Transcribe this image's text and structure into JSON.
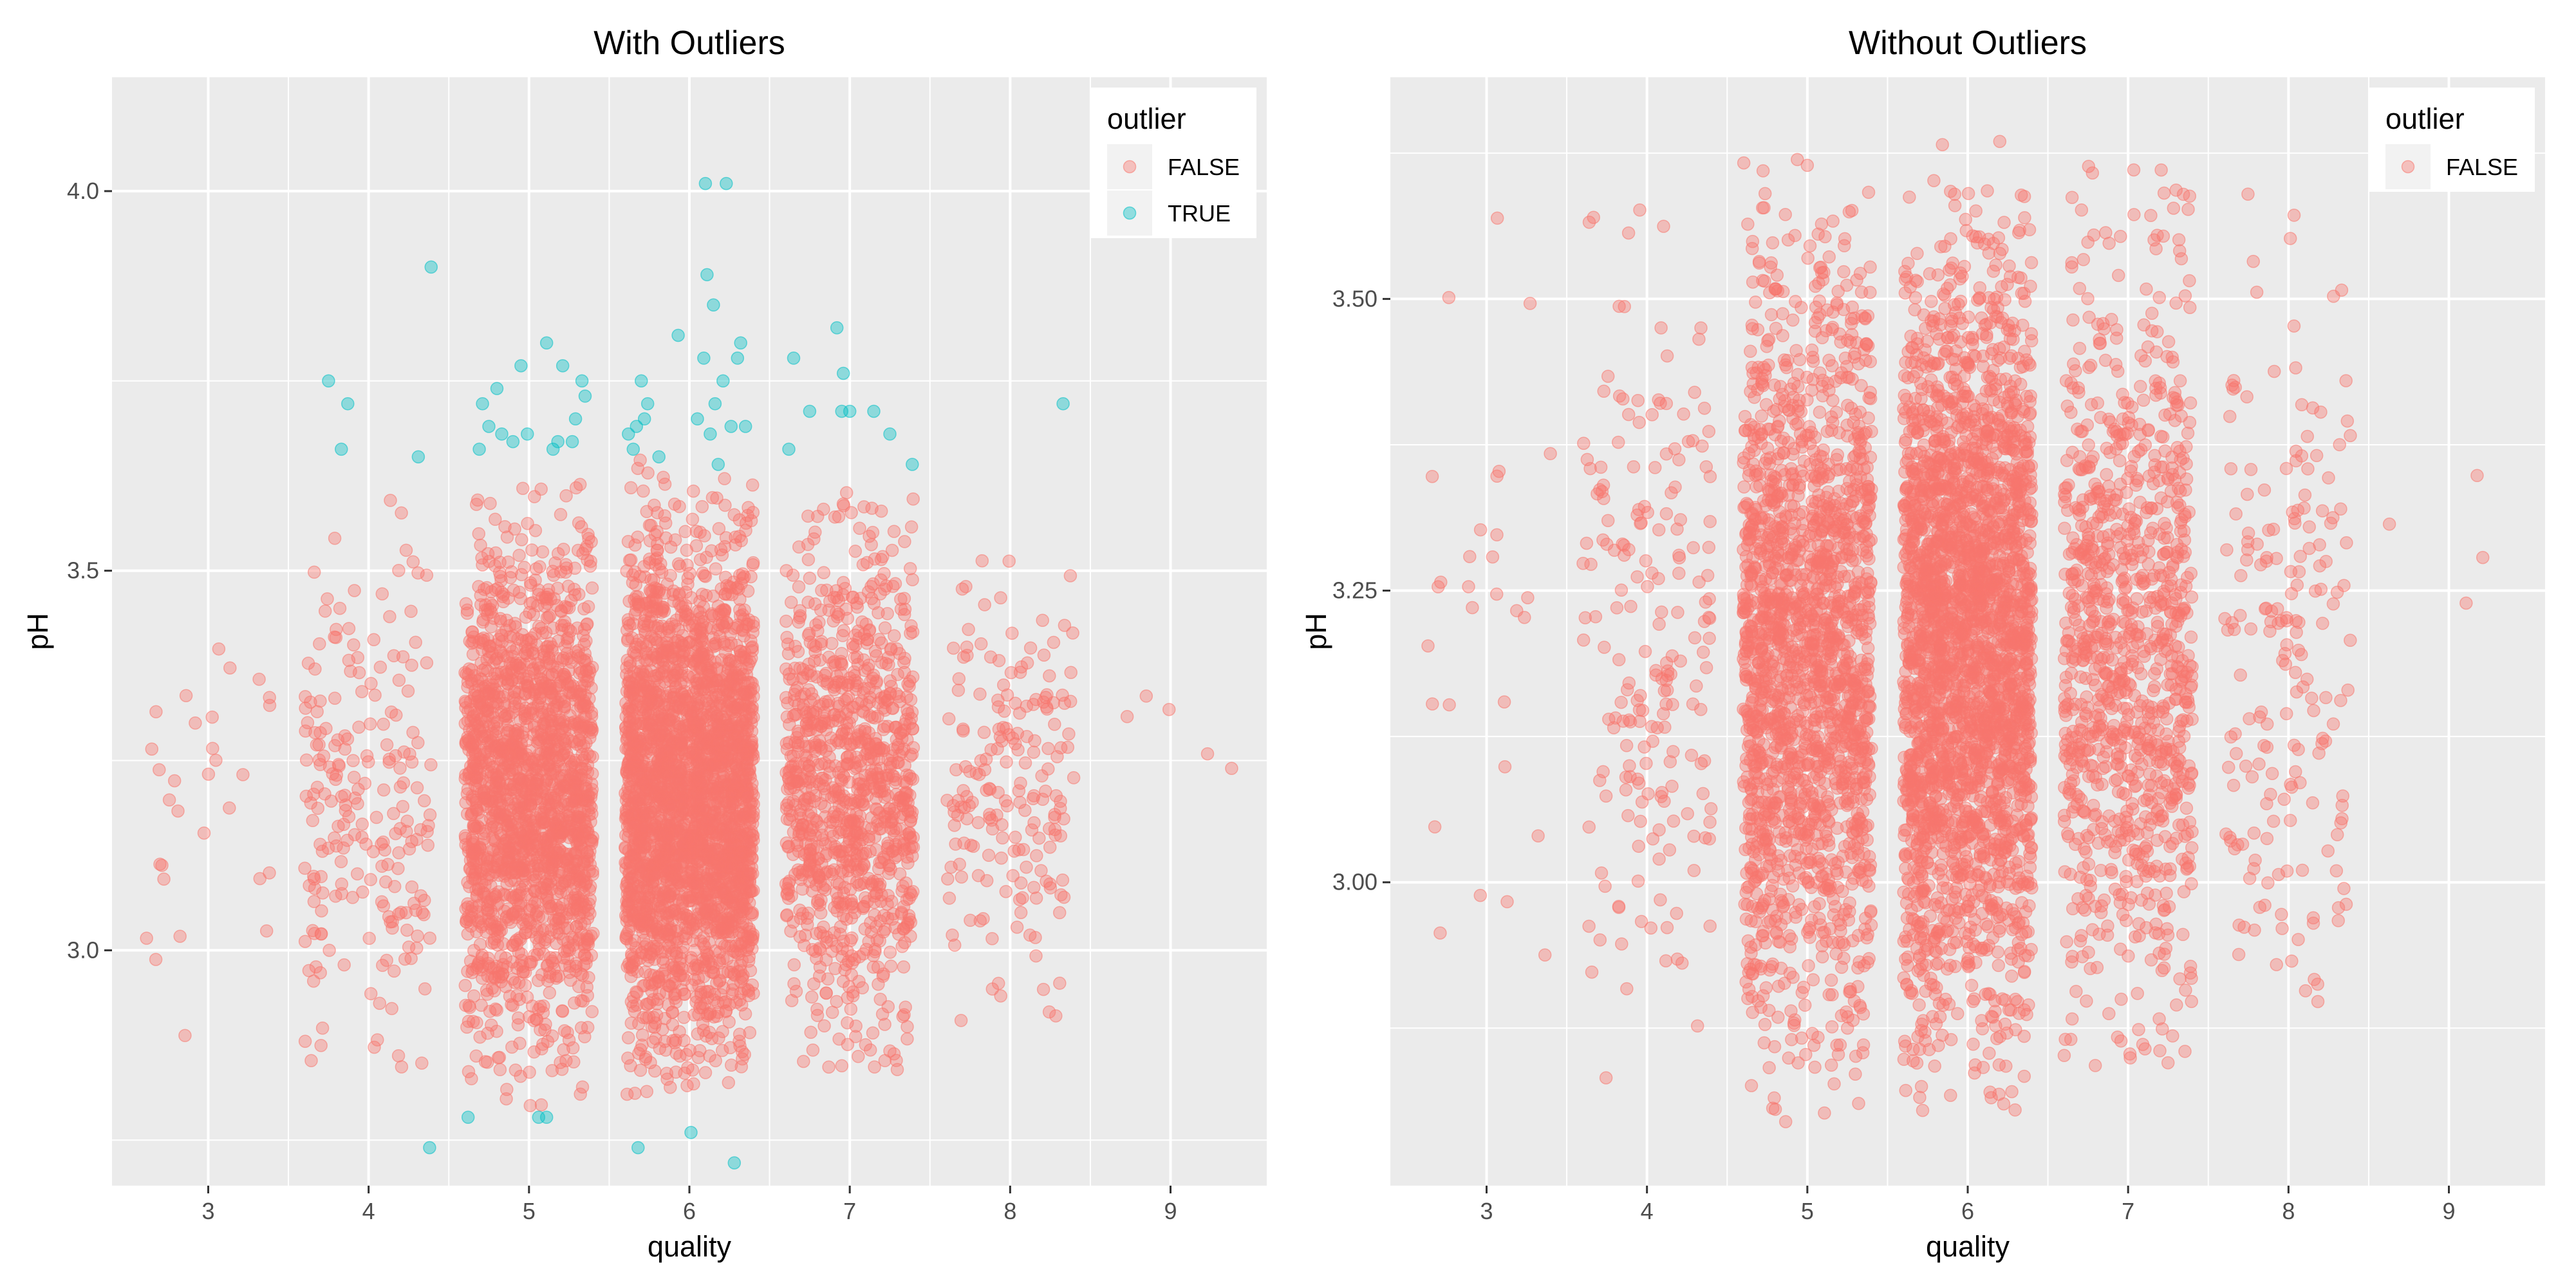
{
  "chart_data": [
    {
      "type": "scatter",
      "title": "With Outliers",
      "xlabel": "quality",
      "ylabel": "pH",
      "xlim": [
        2.4,
        9.6
      ],
      "ylim": [
        2.69,
        4.15
      ],
      "x_ticks": [
        3,
        4,
        5,
        6,
        7,
        8,
        9
      ],
      "y_ticks": [
        3.0,
        3.5,
        4.0
      ],
      "y_tick_labels": [
        "3.0",
        "3.5",
        "4.0"
      ],
      "grid": true,
      "jitter": 0.4,
      "legend": {
        "title": "outlier",
        "placement": "top-right",
        "entries": [
          "FALSE",
          "TRUE"
        ]
      },
      "series": [
        {
          "name": "FALSE",
          "color": "#F8766D",
          "groups": [
            {
              "x": 3,
              "count": 30,
              "y_range": [
                2.87,
                3.63
              ]
            },
            {
              "x": 4,
              "count": 216,
              "y_range": [
                2.82,
                3.63
              ]
            },
            {
              "x": 5,
              "count": 1900,
              "y_range": [
                2.79,
                3.64
              ]
            },
            {
              "x": 6,
              "count": 2800,
              "y_range": [
                2.8,
                3.65
              ]
            },
            {
              "x": 7,
              "count": 1050,
              "y_range": [
                2.84,
                3.62
              ]
            },
            {
              "x": 8,
              "count": 190,
              "y_range": [
                2.88,
                3.59
              ]
            },
            {
              "x": 9,
              "count": 5,
              "y_range": [
                3.2,
                3.41
              ]
            }
          ]
        },
        {
          "name": "TRUE",
          "color": "#00BFC4",
          "points": [
            [
              3.75,
              3.75
            ],
            [
              3.83,
              3.66
            ],
            [
              3.87,
              3.72
            ],
            [
              4.31,
              3.65
            ],
            [
              4.38,
              2.74
            ],
            [
              4.39,
              3.9
            ],
            [
              4.62,
              2.78
            ],
            [
              4.69,
              3.66
            ],
            [
              4.71,
              3.72
            ],
            [
              4.75,
              3.69
            ],
            [
              4.8,
              3.74
            ],
            [
              4.83,
              3.68
            ],
            [
              4.9,
              3.67
            ],
            [
              4.95,
              3.77
            ],
            [
              4.99,
              3.68
            ],
            [
              5.06,
              2.78
            ],
            [
              5.11,
              2.78
            ],
            [
              5.11,
              3.8
            ],
            [
              5.15,
              3.66
            ],
            [
              5.18,
              3.67
            ],
            [
              5.21,
              3.77
            ],
            [
              5.27,
              3.67
            ],
            [
              5.29,
              3.7
            ],
            [
              5.33,
              3.75
            ],
            [
              5.35,
              3.73
            ],
            [
              5.62,
              3.68
            ],
            [
              5.65,
              3.66
            ],
            [
              5.67,
              3.69
            ],
            [
              5.68,
              2.74
            ],
            [
              5.7,
              3.75
            ],
            [
              5.72,
              3.7
            ],
            [
              5.74,
              3.72
            ],
            [
              5.81,
              3.65
            ],
            [
              5.93,
              3.81
            ],
            [
              6.01,
              2.76
            ],
            [
              6.05,
              3.7
            ],
            [
              6.09,
              3.78
            ],
            [
              6.1,
              4.01
            ],
            [
              6.11,
              3.89
            ],
            [
              6.13,
              3.68
            ],
            [
              6.15,
              3.85
            ],
            [
              6.16,
              3.72
            ],
            [
              6.18,
              3.64
            ],
            [
              6.21,
              3.75
            ],
            [
              6.23,
              4.01
            ],
            [
              6.26,
              3.69
            ],
            [
              6.28,
              2.72
            ],
            [
              6.3,
              3.78
            ],
            [
              6.32,
              3.8
            ],
            [
              6.35,
              3.69
            ],
            [
              6.62,
              3.66
            ],
            [
              6.65,
              3.78
            ],
            [
              6.75,
              3.71
            ],
            [
              6.92,
              3.82
            ],
            [
              6.95,
              3.71
            ],
            [
              6.96,
              3.76
            ],
            [
              7.0,
              3.71
            ],
            [
              7.15,
              3.71
            ],
            [
              7.25,
              3.68
            ],
            [
              7.39,
              3.64
            ],
            [
              8.33,
              3.72
            ]
          ]
        }
      ]
    },
    {
      "type": "scatter",
      "title": "Without Outliers",
      "xlabel": "quality",
      "ylabel": "pH",
      "xlim": [
        2.4,
        9.6
      ],
      "ylim": [
        2.74,
        3.69
      ],
      "x_ticks": [
        3,
        4,
        5,
        6,
        7,
        8,
        9
      ],
      "y_ticks": [
        3.0,
        3.25,
        3.5
      ],
      "y_tick_labels": [
        "3.00",
        "3.25",
        "3.50"
      ],
      "grid": true,
      "jitter": 0.4,
      "legend": {
        "title": "outlier",
        "placement": "top-right",
        "entries": [
          "FALSE"
        ]
      },
      "series": [
        {
          "name": "FALSE",
          "color": "#F8766D",
          "groups": [
            {
              "x": 3,
              "count": 30,
              "y_range": [
                2.87,
                3.63
              ]
            },
            {
              "x": 4,
              "count": 200,
              "y_range": [
                2.82,
                3.63
              ]
            },
            {
              "x": 5,
              "count": 1880,
              "y_range": [
                2.79,
                3.64
              ]
            },
            {
              "x": 6,
              "count": 2760,
              "y_range": [
                2.8,
                3.64
              ]
            },
            {
              "x": 7,
              "count": 1030,
              "y_range": [
                2.84,
                3.62
              ]
            },
            {
              "x": 8,
              "count": 188,
              "y_range": [
                2.88,
                3.59
              ]
            },
            {
              "x": 9,
              "count": 4,
              "y_range": [
                3.2,
                3.41
              ]
            }
          ]
        }
      ]
    }
  ]
}
